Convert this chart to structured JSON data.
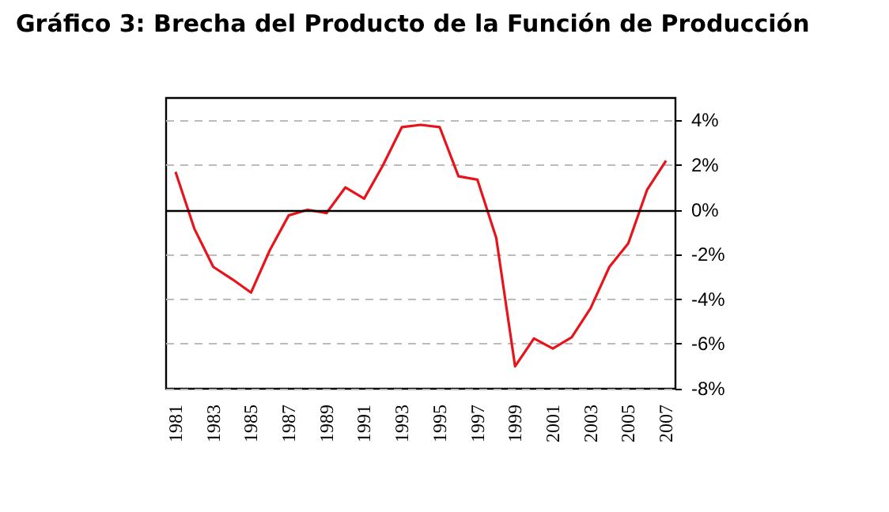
{
  "chart_data": {
    "type": "line",
    "title": "Gráfico 3: Brecha del Producto de la Función de Producción",
    "categories": [
      "1981",
      null,
      "1983",
      null,
      "1985",
      null,
      "1987",
      null,
      "1989",
      null,
      "1991",
      null,
      "1993",
      null,
      "1995",
      null,
      "1997",
      null,
      "1999",
      null,
      "2001",
      null,
      "2003",
      null,
      "2005",
      null,
      "2007"
    ],
    "series": [
      {
        "color": "#e8141b",
        "values": [
          1.7,
          -0.85,
          -2.55,
          -3.1,
          -3.7,
          -1.8,
          -0.25,
          0,
          -0.15,
          1.0,
          0.5,
          2.0,
          3.7,
          3.8,
          3.7,
          1.5,
          1.35,
          -1.25,
          -7.0,
          -5.75,
          -6.2,
          -5.7,
          -4.4,
          -2.55,
          -1.5,
          0.9,
          2.2
        ]
      }
    ],
    "ylim": [
      -8,
      5
    ],
    "yticks": [
      {
        "value": -8,
        "label": "-8%"
      },
      {
        "value": -6,
        "label": "-6%"
      },
      {
        "value": -4,
        "label": "-4%"
      },
      {
        "value": -2,
        "label": "-2%"
      },
      {
        "value": 0,
        "label": "0%"
      },
      {
        "value": 2,
        "label": "2%"
      },
      {
        "value": 4,
        "label": "4%"
      }
    ],
    "ref_lines": [
      {
        "axis": "y",
        "value": 0,
        "color": "#000000"
      }
    ],
    "grid": "y",
    "marker": "none",
    "line_style": "solid"
  }
}
